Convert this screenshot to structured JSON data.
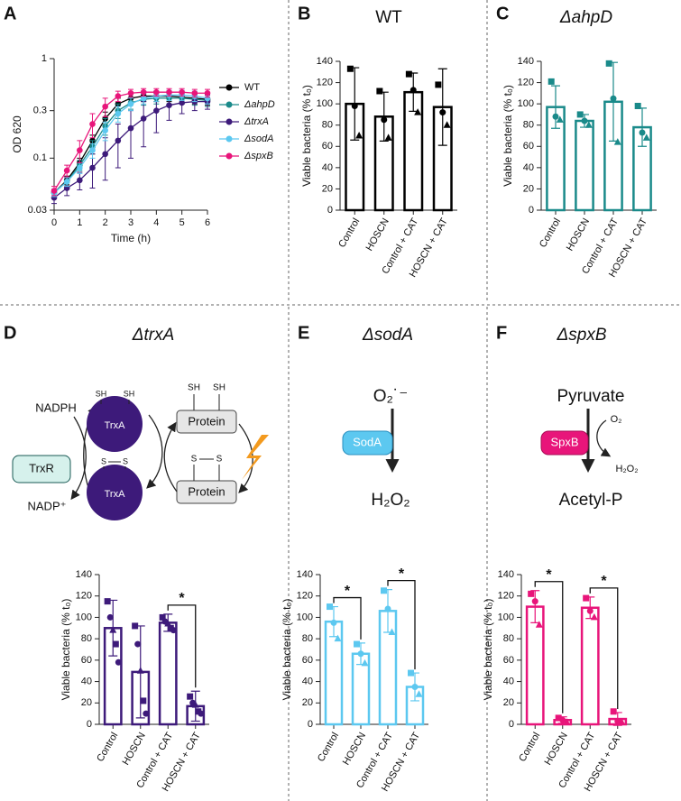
{
  "panel_letters": [
    "A",
    "B",
    "C",
    "D",
    "E",
    "F"
  ],
  "chart_data": [
    {
      "type": "line",
      "xlabel": "Time (h)",
      "ylabel": "OD 620",
      "log_y": true,
      "x": [
        0,
        0.5,
        1,
        1.5,
        2,
        2.5,
        3,
        3.5,
        4,
        4.5,
        5,
        5.5,
        6
      ],
      "xlim": [
        0,
        6
      ],
      "xticks": [
        0,
        1,
        2,
        3,
        4,
        5,
        6
      ],
      "ylim": [
        0.03,
        1
      ],
      "yticks": [
        0.03,
        0.1,
        0.3,
        1
      ],
      "series": [
        {
          "name": "WT",
          "color": "#000000",
          "values": [
            0.045,
            0.06,
            0.09,
            0.15,
            0.25,
            0.35,
            0.4,
            0.42,
            0.42,
            0.42,
            0.41,
            0.4,
            0.39
          ],
          "errors": [
            0.004,
            0.006,
            0.01,
            0.02,
            0.04,
            0.05,
            0.05,
            0.05,
            0.05,
            0.05,
            0.05,
            0.05,
            0.05
          ]
        },
        {
          "name": "ΔahpD",
          "color": "#1a8a8a",
          "values": [
            0.045,
            0.058,
            0.085,
            0.13,
            0.21,
            0.3,
            0.36,
            0.39,
            0.4,
            0.4,
            0.4,
            0.39,
            0.38
          ],
          "errors": [
            0.004,
            0.006,
            0.01,
            0.02,
            0.04,
            0.05,
            0.05,
            0.05,
            0.05,
            0.05,
            0.05,
            0.05,
            0.05
          ]
        },
        {
          "name": "ΔtrxA",
          "color": "#3d1a7a",
          "values": [
            0.04,
            0.05,
            0.06,
            0.08,
            0.11,
            0.15,
            0.2,
            0.25,
            0.3,
            0.34,
            0.36,
            0.37,
            0.37
          ],
          "errors": [
            0.005,
            0.008,
            0.012,
            0.03,
            0.05,
            0.07,
            0.1,
            0.12,
            0.12,
            0.1,
            0.08,
            0.07,
            0.06
          ]
        },
        {
          "name": "ΔsodA",
          "color": "#5cc8f0",
          "values": [
            0.045,
            0.058,
            0.08,
            0.12,
            0.19,
            0.28,
            0.35,
            0.4,
            0.42,
            0.43,
            0.43,
            0.42,
            0.4
          ],
          "errors": [
            0.004,
            0.006,
            0.01,
            0.02,
            0.04,
            0.05,
            0.05,
            0.05,
            0.05,
            0.05,
            0.05,
            0.05,
            0.05
          ]
        },
        {
          "name": "ΔspxB",
          "color": "#e8157a",
          "values": [
            0.047,
            0.075,
            0.12,
            0.22,
            0.33,
            0.42,
            0.45,
            0.46,
            0.46,
            0.46,
            0.46,
            0.45,
            0.45
          ],
          "errors": [
            0.005,
            0.01,
            0.03,
            0.06,
            0.07,
            0.05,
            0.04,
            0.04,
            0.04,
            0.04,
            0.04,
            0.04,
            0.04
          ]
        }
      ]
    },
    {
      "type": "bar",
      "title": "WT",
      "ylabel": "Viable bacteria (% t₀)",
      "color": "#000000",
      "categories": [
        "Control",
        "HOSCN",
        "Control + CAT",
        "HOSCN + CAT"
      ],
      "values": [
        100,
        88,
        111,
        97
      ],
      "errors": [
        34,
        23,
        18,
        36
      ],
      "points": [
        [
          133,
          98,
          70
        ],
        [
          112,
          85,
          68
        ],
        [
          128,
          113,
          92
        ],
        [
          118,
          92,
          80
        ]
      ],
      "markers": [
        "square",
        "circle",
        "triangle"
      ],
      "ylim": [
        0,
        140
      ],
      "yticks": [
        0,
        20,
        40,
        60,
        80,
        100,
        120,
        140
      ]
    },
    {
      "type": "bar",
      "title": "ΔahpD",
      "ylabel": "Viable bacteria (% t₀)",
      "color": "#1a8a8a",
      "categories": [
        "Control",
        "HOSCN",
        "Control + CAT",
        "HOSCN + CAT"
      ],
      "values": [
        97,
        84,
        102,
        78
      ],
      "errors": [
        20,
        6,
        37,
        18
      ],
      "points": [
        [
          121,
          88,
          85
        ],
        [
          90,
          84,
          80
        ],
        [
          138,
          105,
          64
        ],
        [
          98,
          73,
          68
        ]
      ],
      "markers": [
        "square",
        "circle",
        "triangle"
      ],
      "ylim": [
        0,
        140
      ],
      "yticks": [
        0,
        20,
        40,
        60,
        80,
        100,
        120,
        140
      ]
    },
    {
      "type": "bar",
      "title": "ΔtrxA",
      "ylabel": "Viable bacteria (% t₀)",
      "color": "#3d1a7a",
      "categories": [
        "Control",
        "HOSCN",
        "Control + CAT",
        "HOSCN + CAT"
      ],
      "values": [
        90,
        49,
        95,
        17
      ],
      "errors": [
        26,
        43,
        8,
        14
      ],
      "points": [
        [
          115,
          100,
          88,
          75,
          58
        ],
        [
          92,
          75,
          50,
          22,
          10
        ],
        [
          100,
          96,
          94,
          90,
          88
        ],
        [
          26,
          20,
          18,
          12,
          10
        ]
      ],
      "markers": [
        "square",
        "circle",
        "triangle"
      ],
      "significance": [
        {
          "from": "Control + CAT",
          "to": "HOSCN + CAT",
          "label": "*"
        }
      ],
      "ylim": [
        0,
        140
      ],
      "yticks": [
        0,
        20,
        40,
        60,
        80,
        100,
        120,
        140
      ]
    },
    {
      "type": "bar",
      "title": "ΔsodA",
      "ylabel": "Viable bacteria (% t₀)",
      "color": "#5cc8f0",
      "categories": [
        "Control",
        "HOSCN",
        "Control + CAT",
        "HOSCN + CAT"
      ],
      "values": [
        96,
        66,
        106,
        35
      ],
      "errors": [
        14,
        10,
        20,
        13
      ],
      "points": [
        [
          110,
          95,
          80
        ],
        [
          75,
          66,
          57
        ],
        [
          125,
          108,
          86
        ],
        [
          48,
          35,
          28
        ]
      ],
      "markers": [
        "square",
        "circle",
        "triangle"
      ],
      "significance": [
        {
          "from": "Control",
          "to": "HOSCN",
          "label": "*"
        },
        {
          "from": "Control + CAT",
          "to": "HOSCN + CAT",
          "label": "*"
        }
      ],
      "ylim": [
        0,
        140
      ],
      "yticks": [
        0,
        20,
        40,
        60,
        80,
        100,
        120,
        140
      ]
    },
    {
      "type": "bar",
      "title": "ΔspxB",
      "ylabel": "Viable bacteria (% t₀)",
      "color": "#e8157a",
      "categories": [
        "Control",
        "HOSCN",
        "Control + CAT",
        "HOSCN + CAT"
      ],
      "values": [
        110,
        4,
        109,
        5
      ],
      "errors": [
        15,
        3,
        10,
        6
      ],
      "points": [
        [
          122,
          115,
          93
        ],
        [
          6,
          4,
          2
        ],
        [
          118,
          106,
          100
        ],
        [
          12,
          3,
          2
        ]
      ],
      "markers": [
        "square",
        "circle",
        "triangle"
      ],
      "significance": [
        {
          "from": "Control",
          "to": "HOSCN",
          "label": "*"
        },
        {
          "from": "Control + CAT",
          "to": "HOSCN + CAT",
          "label": "*"
        }
      ],
      "ylim": [
        0,
        140
      ],
      "yticks": [
        0,
        20,
        40,
        60,
        80,
        100,
        120,
        140
      ]
    }
  ],
  "diagrams": {
    "trxA": {
      "nadph": "NADPH",
      "trxr": "TrxR",
      "nadp": "NADP⁺",
      "trxa_reduced": "TrxA",
      "trxa_oxidized": "TrxA",
      "thiols": [
        "SH",
        "SH",
        "SH",
        "SH"
      ],
      "disulfides": [
        "S",
        "S",
        "S",
        "S"
      ],
      "protein_reduced": "Protein",
      "protein_oxidized": "Protein"
    },
    "sodA": {
      "superoxide": "O₂˙⁻",
      "enzyme": "SodA",
      "product": "H₂O₂"
    },
    "spxB": {
      "substrate": "Pyruvate",
      "cosubstrate": "O₂",
      "enzyme": "SpxB",
      "byproduct": "H₂O₂",
      "product": "Acetyl-P"
    }
  }
}
